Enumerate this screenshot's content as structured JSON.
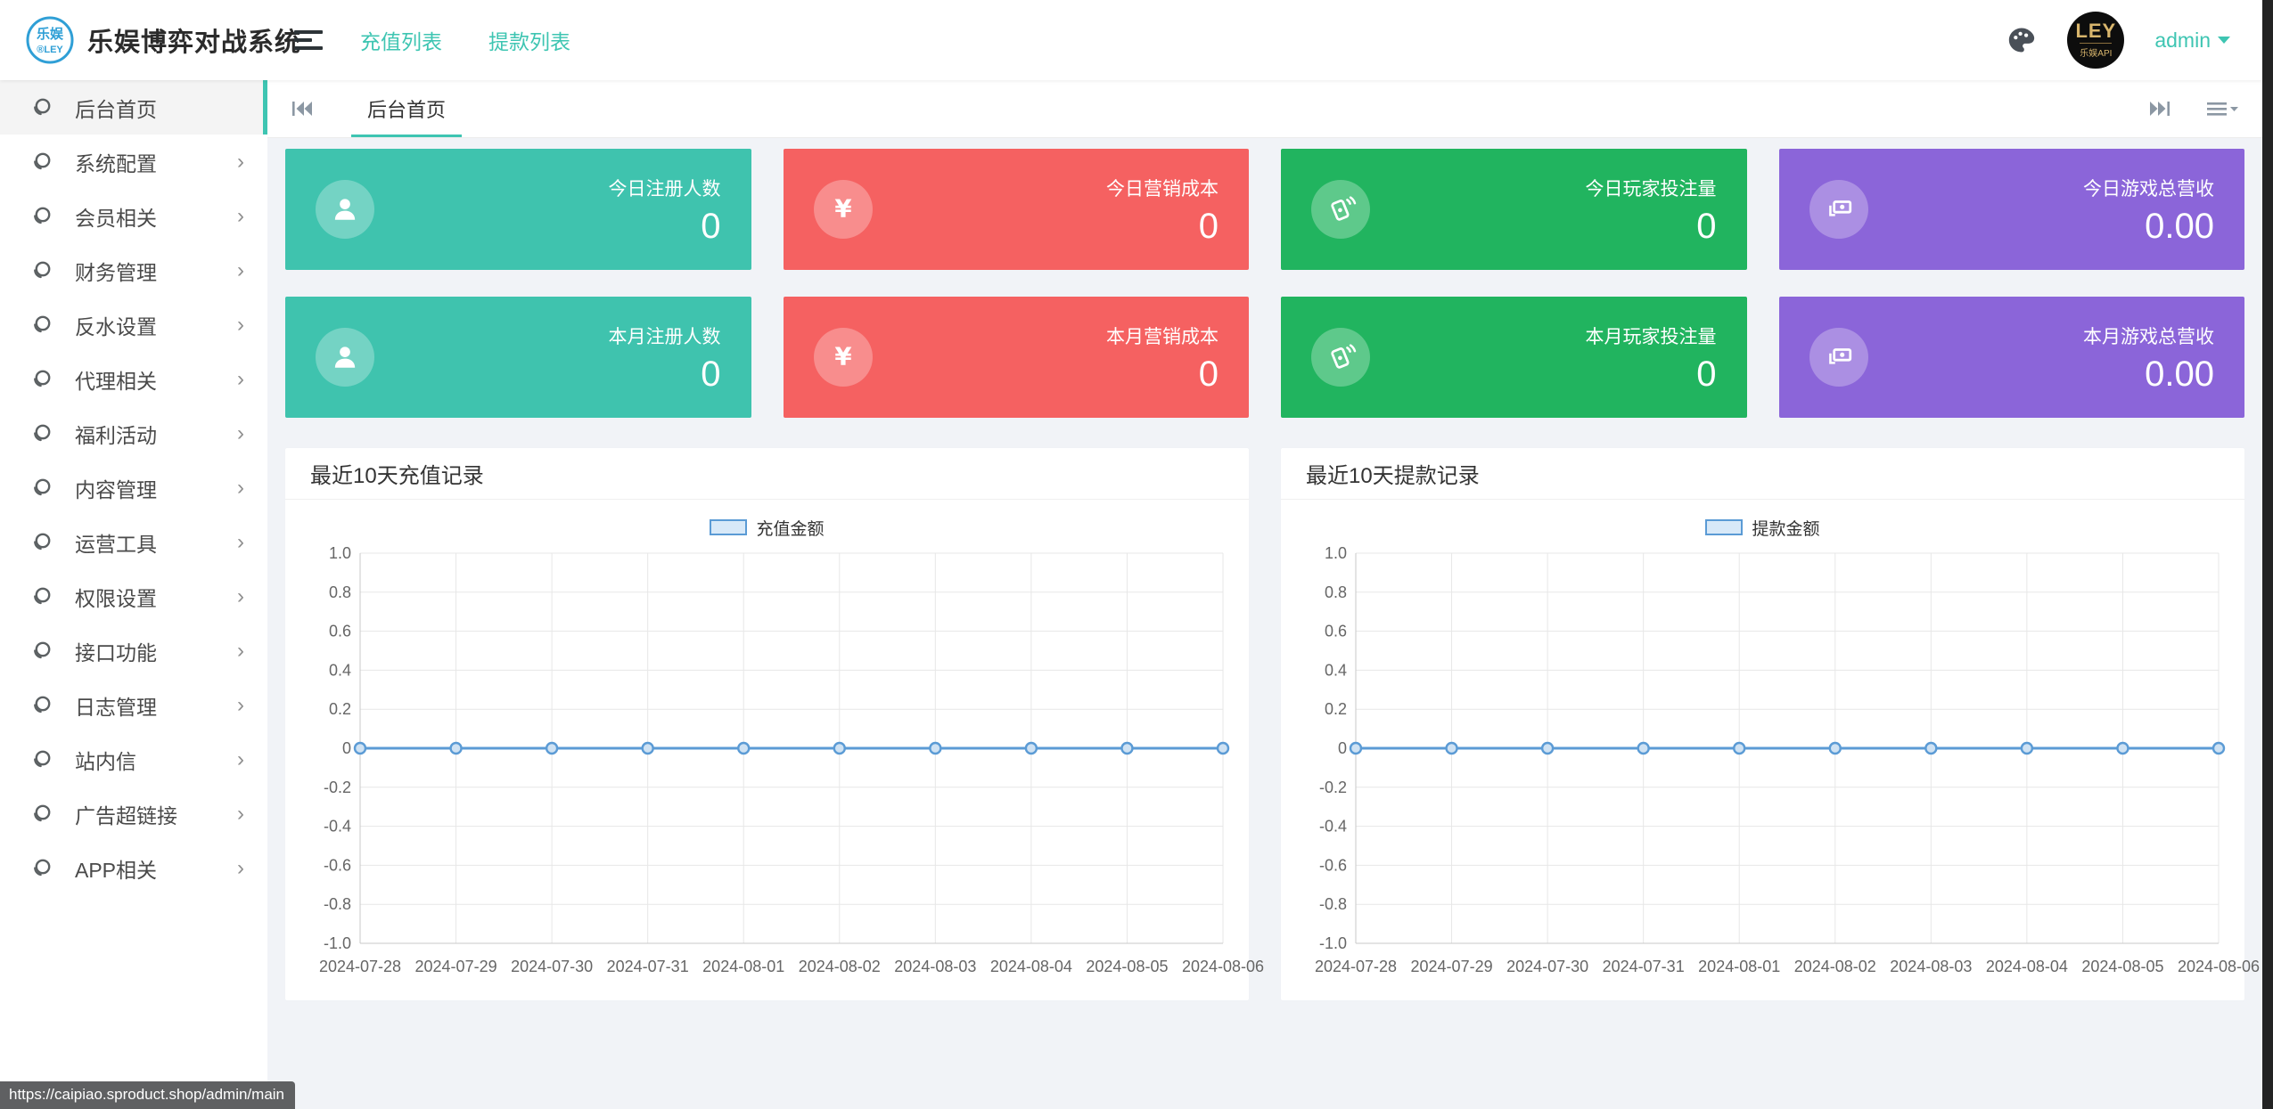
{
  "app": {
    "title": "乐娱博弈对战系统",
    "logo_top": "乐娱",
    "logo_bottom": "®LEY"
  },
  "colors": {
    "accent": "#3EC5B2",
    "card_teal": "#3FC3AE",
    "card_red": "#F56161",
    "card_green": "#21B45F",
    "card_purple": "#8B65D9",
    "chart_line": "#5B9BD5",
    "chart_marker_fill": "#CFE2F3",
    "logo_blue": "#2F9FD6"
  },
  "header": {
    "nav": [
      {
        "label": "充值列表"
      },
      {
        "label": "提款列表"
      }
    ],
    "avatar_line1": "LEY",
    "avatar_line2": "乐娱API",
    "user_name": "admin"
  },
  "sidebar": {
    "items": [
      {
        "label": "后台首页",
        "active": true,
        "has_children": false
      },
      {
        "label": "系统配置",
        "active": false,
        "has_children": true
      },
      {
        "label": "会员相关",
        "active": false,
        "has_children": true
      },
      {
        "label": "财务管理",
        "active": false,
        "has_children": true
      },
      {
        "label": "反水设置",
        "active": false,
        "has_children": true
      },
      {
        "label": "代理相关",
        "active": false,
        "has_children": true
      },
      {
        "label": "福利活动",
        "active": false,
        "has_children": true
      },
      {
        "label": "内容管理",
        "active": false,
        "has_children": true
      },
      {
        "label": "运营工具",
        "active": false,
        "has_children": true
      },
      {
        "label": "权限设置",
        "active": false,
        "has_children": true
      },
      {
        "label": "接口功能",
        "active": false,
        "has_children": true
      },
      {
        "label": "日志管理",
        "active": false,
        "has_children": true
      },
      {
        "label": "站内信",
        "active": false,
        "has_children": true
      },
      {
        "label": "广告超链接",
        "active": false,
        "has_children": true
      },
      {
        "label": "APP相关",
        "active": false,
        "has_children": true
      }
    ]
  },
  "tabbar": {
    "tabs": [
      {
        "label": "后台首页",
        "active": true
      }
    ]
  },
  "cards": [
    {
      "label": "今日注册人数",
      "value": "0",
      "color_key": "card_teal",
      "icon": "user-icon"
    },
    {
      "label": "今日营销成本",
      "value": "0",
      "color_key": "card_red",
      "icon": "yen-icon"
    },
    {
      "label": "今日玩家投注量",
      "value": "0",
      "color_key": "card_green",
      "icon": "bet-icon"
    },
    {
      "label": "今日游戏总营收",
      "value": "0.00",
      "color_key": "card_purple",
      "icon": "money-icon"
    },
    {
      "label": "本月注册人数",
      "value": "0",
      "color_key": "card_teal",
      "icon": "user-icon"
    },
    {
      "label": "本月营销成本",
      "value": "0",
      "color_key": "card_red",
      "icon": "yen-icon"
    },
    {
      "label": "本月玩家投注量",
      "value": "0",
      "color_key": "card_green",
      "icon": "bet-icon"
    },
    {
      "label": "本月游戏总营收",
      "value": "0.00",
      "color_key": "card_purple",
      "icon": "money-icon"
    }
  ],
  "chart_data": [
    {
      "type": "line",
      "title": "最近10天充值记录",
      "legend": "充值金额",
      "x": [
        "2024-07-28",
        "2024-07-29",
        "2024-07-30",
        "2024-07-31",
        "2024-08-01",
        "2024-08-02",
        "2024-08-03",
        "2024-08-04",
        "2024-08-05",
        "2024-08-06"
      ],
      "series": [
        {
          "name": "充值金额",
          "values": [
            0,
            0,
            0,
            0,
            0,
            0,
            0,
            0,
            0,
            0
          ]
        }
      ],
      "ylim": [
        -1.0,
        1.0
      ],
      "ytick_step": 0.2,
      "grid": true,
      "legend_position": "top"
    },
    {
      "type": "line",
      "title": "最近10天提款记录",
      "legend": "提款金额",
      "x": [
        "2024-07-28",
        "2024-07-29",
        "2024-07-30",
        "2024-07-31",
        "2024-08-01",
        "2024-08-02",
        "2024-08-03",
        "2024-08-04",
        "2024-08-05",
        "2024-08-06"
      ],
      "series": [
        {
          "name": "提款金额",
          "values": [
            0,
            0,
            0,
            0,
            0,
            0,
            0,
            0,
            0,
            0
          ]
        }
      ],
      "ylim": [
        -1.0,
        1.0
      ],
      "ytick_step": 0.2,
      "grid": true,
      "legend_position": "top"
    }
  ],
  "status_bar": {
    "url": "https://caipiao.sproduct.shop/admin/main"
  }
}
